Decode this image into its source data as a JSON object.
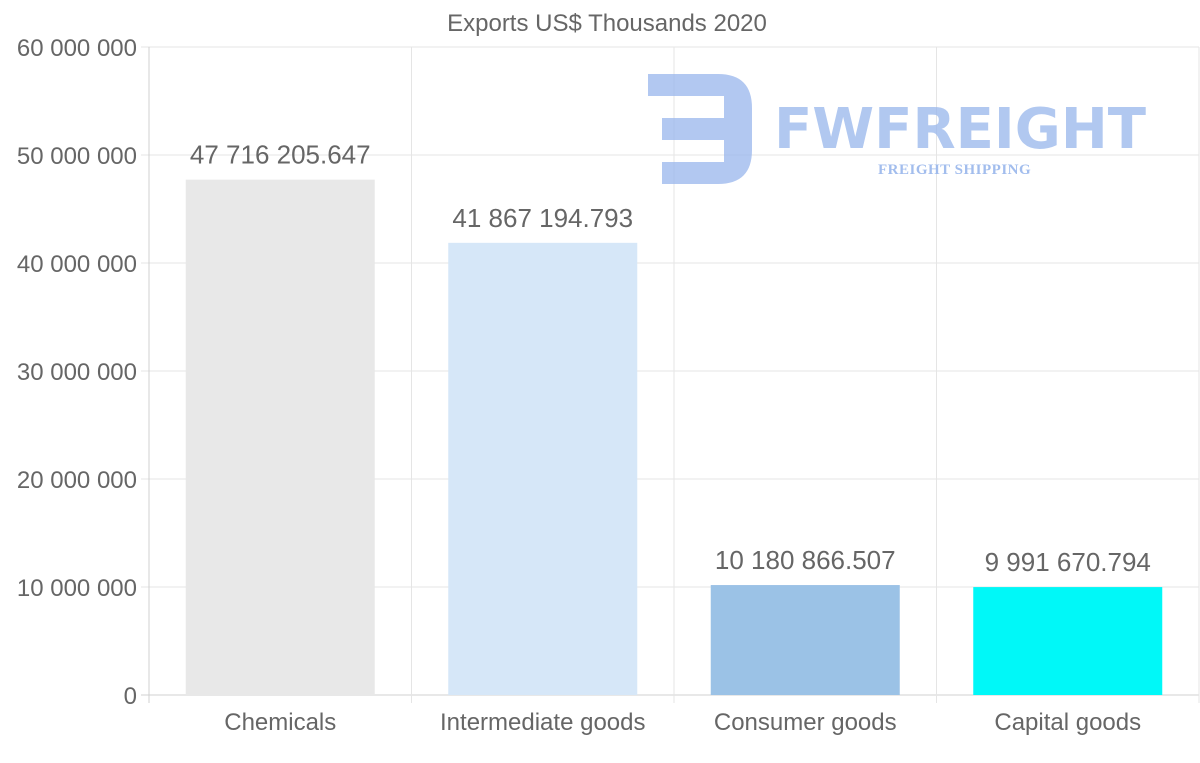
{
  "chart_data": {
    "type": "bar",
    "title": "Exports US$ Thousands 2020",
    "categories": [
      "Chemicals",
      "Intermediate goods",
      "Consumer goods",
      "Capital goods"
    ],
    "values": [
      47716205.647,
      41867194.793,
      10180866.507,
      9991670.794
    ],
    "value_labels": [
      "47 716 205.647",
      "41 867 194.793",
      "10 180 866.507",
      "9 991 670.794"
    ],
    "colors": [
      "#e8e8e8",
      "#d6e7f8",
      "#9bc2e6",
      "#00f8f8"
    ],
    "ylim": [
      0,
      60000000
    ],
    "yticks": [
      0,
      10000000,
      20000000,
      30000000,
      40000000,
      50000000,
      60000000
    ],
    "ytick_labels": [
      "0",
      "10 000 000",
      "20 000 000",
      "30 000 000",
      "40 000 000",
      "50 000 000",
      "60 000 000"
    ],
    "xlabel": "",
    "ylabel": "",
    "grid": true,
    "legend": "none"
  },
  "watermark": {
    "brand": "FWFREIGHT",
    "tagline": "FREIGHT SHIPPING",
    "color": "#98b6ec"
  }
}
